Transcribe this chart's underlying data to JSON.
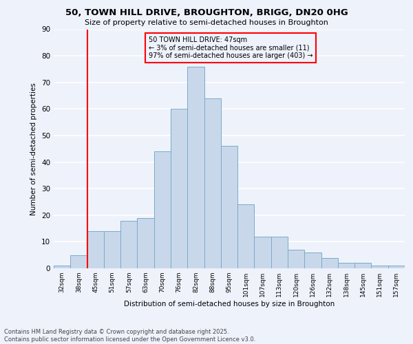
{
  "title1": "50, TOWN HILL DRIVE, BROUGHTON, BRIGG, DN20 0HG",
  "title2": "Size of property relative to semi-detached houses in Broughton",
  "xlabel": "Distribution of semi-detached houses by size in Broughton",
  "ylabel": "Number of semi-detached properties",
  "bin_labels": [
    "32sqm",
    "38sqm",
    "45sqm",
    "51sqm",
    "57sqm",
    "63sqm",
    "70sqm",
    "76sqm",
    "82sqm",
    "88sqm",
    "95sqm",
    "101sqm",
    "107sqm",
    "113sqm",
    "120sqm",
    "126sqm",
    "132sqm",
    "138sqm",
    "145sqm",
    "151sqm",
    "157sqm"
  ],
  "bar_heights": [
    1,
    5,
    14,
    14,
    18,
    19,
    44,
    60,
    76,
    64,
    46,
    24,
    12,
    12,
    7,
    6,
    4,
    2,
    2,
    1,
    1
  ],
  "bar_color": "#c8d8ea",
  "bar_edge_color": "#7aaac8",
  "vline_color": "red",
  "annotation_title": "50 TOWN HILL DRIVE: 47sqm",
  "annotation_line1": "← 3% of semi-detached houses are smaller (11)",
  "annotation_line2": "97% of semi-detached houses are larger (403) →",
  "annotation_box_color": "red",
  "ylim": [
    0,
    90
  ],
  "yticks": [
    0,
    10,
    20,
    30,
    40,
    50,
    60,
    70,
    80,
    90
  ],
  "footnote1": "Contains HM Land Registry data © Crown copyright and database right 2025.",
  "footnote2": "Contains public sector information licensed under the Open Government Licence v3.0.",
  "bg_color": "#eef2fb",
  "grid_color": "#ffffff"
}
